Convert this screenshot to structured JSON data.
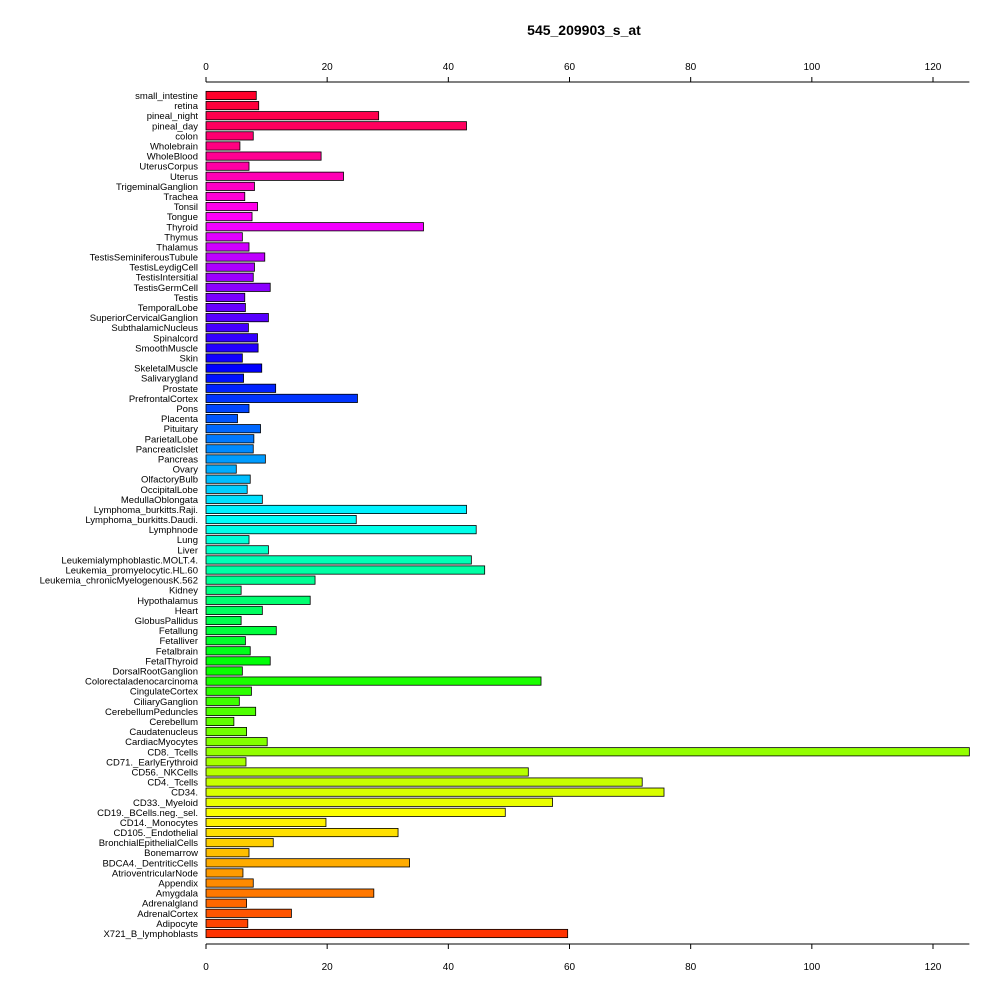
{
  "chart_data": {
    "type": "bar",
    "orientation": "horizontal",
    "title": "545_209903_s_at",
    "xlabel": "",
    "ylabel": "",
    "xlim": [
      0,
      126
    ],
    "x_ticks": [
      "0",
      "20",
      "40",
      "60",
      "80",
      "100",
      "120"
    ],
    "grid": false,
    "categories": [
      "small_intestine",
      "retina",
      "pineal_night",
      "pineal_day",
      "colon",
      "Wholebrain",
      "WholeBlood",
      "UterusCorpus",
      "Uterus",
      "TrigeminalGanglion",
      "Trachea",
      "Tonsil",
      "Tongue",
      "Thyroid",
      "Thymus",
      "Thalamus",
      "TestisSeminiferousTubule",
      "TestisLeydigCell",
      "TestisIntersitial",
      "TestisGermCell",
      "Testis",
      "TemporalLobe",
      "SuperiorCervicalGanglion",
      "SubthalamicNucleus",
      "Spinalcord",
      "SmoothMuscle",
      "Skin",
      "SkeletalMuscle",
      "Salivarygland",
      "Prostate",
      "PrefrontalCortex",
      "Pons",
      "Placenta",
      "Pituitary",
      "ParietalLobe",
      "PancreaticIslet",
      "Pancreas",
      "Ovary",
      "OlfactoryBulb",
      "OccipitalLobe",
      "MedullaOblongata",
      "Lymphoma_burkitts.Raji.",
      "Lymphoma_burkitts.Daudi.",
      "Lymphnode",
      "Lung",
      "Liver",
      "Leukemialymphoblastic.MOLT.4.",
      "Leukemia_promyelocytic.HL.60",
      "Leukemia_chronicMyelogenousK.562",
      "Kidney",
      "Hypothalamus",
      "Heart",
      "GlobusPallidus",
      "Fetallung",
      "Fetalliver",
      "Fetalbrain",
      "FetalThyroid",
      "DorsalRootGanglion",
      "Colorectaladenocarcinoma",
      "CingulateCortex",
      "CiliaryGanglion",
      "CerebellumPeduncles",
      "Cerebellum",
      "Caudatenucleus",
      "CardiacMyocytes",
      "CD8._Tcells",
      "CD71._EarlyErythroid",
      "CD56._NKCells",
      "CD4._Tcells",
      "CD34.",
      "CD33._Myeloid",
      "CD19._BCells.neg._sel.",
      "CD14._Monocytes",
      "CD105._Endothelial",
      "BronchialEpithelialCells",
      "Bonemarrow",
      "BDCA4._DentriticCells",
      "AtrioventricularNode",
      "Appendix",
      "Amygdala",
      "Adrenalgland",
      "AdrenalCortex",
      "Adipocyte",
      "X721_B_lymphoblasts"
    ],
    "values": [
      8.3,
      8.7,
      28.5,
      43.0,
      7.8,
      5.6,
      19.0,
      7.1,
      22.7,
      8.0,
      6.4,
      8.5,
      7.6,
      35.9,
      6.0,
      7.1,
      9.7,
      8.0,
      7.8,
      10.6,
      6.4,
      6.5,
      10.3,
      7.0,
      8.5,
      8.6,
      6.0,
      9.2,
      6.2,
      11.5,
      25.0,
      7.1,
      5.2,
      9.0,
      7.9,
      7.8,
      9.8,
      5.0,
      7.3,
      6.8,
      9.3,
      43.0,
      24.8,
      44.6,
      7.1,
      10.3,
      43.8,
      46.0,
      18.0,
      5.8,
      17.2,
      9.3,
      5.8,
      11.6,
      6.5,
      7.3,
      10.6,
      6.0,
      55.3,
      7.5,
      5.5,
      8.2,
      4.6,
      6.7,
      10.1,
      126.0,
      6.6,
      53.2,
      72.0,
      75.6,
      57.2,
      49.4,
      19.8,
      31.7,
      11.1,
      7.1,
      33.6,
      6.1,
      7.8,
      27.7,
      6.7,
      14.1,
      6.9,
      59.7
    ]
  }
}
